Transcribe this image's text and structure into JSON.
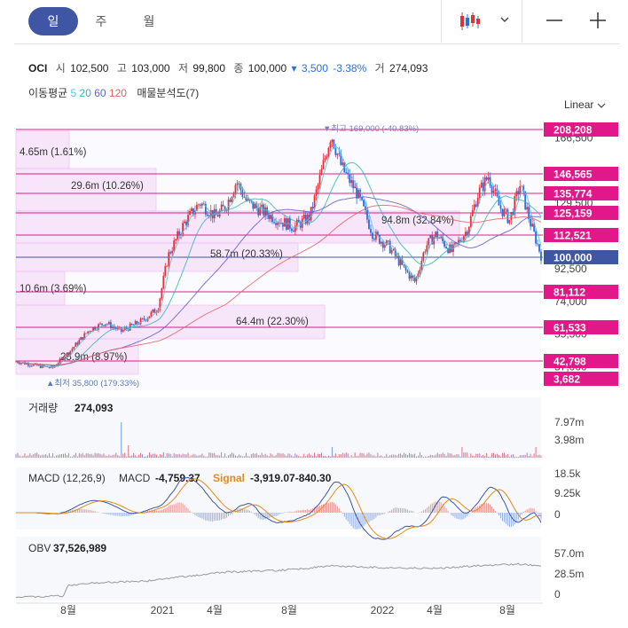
{
  "tabs": [
    {
      "label": "일",
      "active": true
    },
    {
      "label": "주",
      "active": false
    },
    {
      "label": "월",
      "active": false
    }
  ],
  "icons": {
    "chart_type": "candlestick-icon",
    "dropdown": "chevron-down-icon",
    "zoom_out": "minus-icon",
    "zoom_in": "plus-icon"
  },
  "quote": {
    "symbol": "OCI",
    "open_label": "시",
    "open": "102,500",
    "high_label": "고",
    "high": "103,000",
    "low_label": "저",
    "low": "99,800",
    "close_label": "종",
    "close": "100,000",
    "change_arrow": "▾",
    "change": "3,500",
    "change_pct": "-3.38%",
    "volume_label": "거",
    "volume": "274,093"
  },
  "ma": {
    "label": "이동평균",
    "periods": [
      {
        "value": "5",
        "color": "#5bc0de"
      },
      {
        "value": "20",
        "color": "#3bb3c3"
      },
      {
        "value": "60",
        "color": "#6a5acd"
      },
      {
        "value": "120",
        "color": "#e06666"
      }
    ],
    "extra": "매물분석도(7)"
  },
  "scale_mode": "Linear",
  "colors": {
    "up": "#e0323c",
    "down": "#2a6fdb",
    "magenta": "#e0188a",
    "current": "#3e56a3",
    "profile": "#f4d6f6"
  },
  "chart_data": [
    {
      "type": "candlestick",
      "title": "OCI",
      "price_ticks": [
        "166,500",
        "129,500",
        "92,500",
        "74,000",
        "55,500",
        "37,000"
      ],
      "level_labels": [
        "208,208",
        "146,565",
        "135,774",
        "125,159",
        "112,521",
        "100,000",
        "81,112",
        "61,533",
        "42,798",
        "3,682"
      ],
      "high_marker": "▼최고 169,000 (-40.83%)",
      "low_marker": "▲최저 35,800 (179.33%)",
      "volume_profile": [
        {
          "label": "4.65m (1.61%)"
        },
        {
          "label": "29.6m (10.26%)"
        },
        {
          "label": "94.8m (32.84%)"
        },
        {
          "label": "58.7m (20.33%)"
        },
        {
          "label": "10.6m (3.69%)"
        },
        {
          "label": "64.4m (22.30%)"
        },
        {
          "label": "25.9m (8.97%)"
        }
      ],
      "x_labels": [
        "8월",
        "2021",
        "4월",
        "8월",
        "2022",
        "4월",
        "8월"
      ],
      "close_path_approx": [
        [
          0,
          40000
        ],
        [
          0.04,
          37500
        ],
        [
          0.07,
          36500
        ],
        [
          0.1,
          45000
        ],
        [
          0.14,
          58000
        ],
        [
          0.17,
          62000
        ],
        [
          0.2,
          57000
        ],
        [
          0.24,
          63000
        ],
        [
          0.27,
          70000
        ],
        [
          0.29,
          100000
        ],
        [
          0.32,
          118000
        ],
        [
          0.35,
          130000
        ],
        [
          0.38,
          122000
        ],
        [
          0.4,
          128000
        ],
        [
          0.42,
          142000
        ],
        [
          0.44,
          130000
        ],
        [
          0.47,
          125000
        ],
        [
          0.5,
          120000
        ],
        [
          0.53,
          116000
        ],
        [
          0.56,
          122000
        ],
        [
          0.58,
          145000
        ],
        [
          0.6,
          169000
        ],
        [
          0.62,
          150000
        ],
        [
          0.65,
          135000
        ],
        [
          0.68,
          112000
        ],
        [
          0.71,
          105000
        ],
        [
          0.74,
          92000
        ],
        [
          0.76,
          85000
        ],
        [
          0.78,
          105000
        ],
        [
          0.8,
          112000
        ],
        [
          0.83,
          102000
        ],
        [
          0.86,
          115000
        ],
        [
          0.88,
          135000
        ],
        [
          0.9,
          145000
        ],
        [
          0.92,
          128000
        ],
        [
          0.94,
          120000
        ],
        [
          0.96,
          140000
        ],
        [
          0.98,
          118000
        ],
        [
          1.0,
          100000
        ]
      ]
    },
    {
      "type": "bar",
      "title": "거래량",
      "value_label": "274,093",
      "ticks": [
        "7.97m",
        "3.98m"
      ]
    },
    {
      "type": "line",
      "title": "MACD (12,26,9)",
      "macd_label": "MACD",
      "macd_value": "-4,759.37",
      "signal_label": "Signal",
      "signal_value": "-3,919.07-840.30",
      "ticks": [
        "18.5k",
        "9.25k",
        "0"
      ]
    },
    {
      "type": "line",
      "title": "OBV",
      "value_label": "37,526,989",
      "ticks": [
        "57.0m",
        "28.5m",
        "0"
      ]
    }
  ]
}
